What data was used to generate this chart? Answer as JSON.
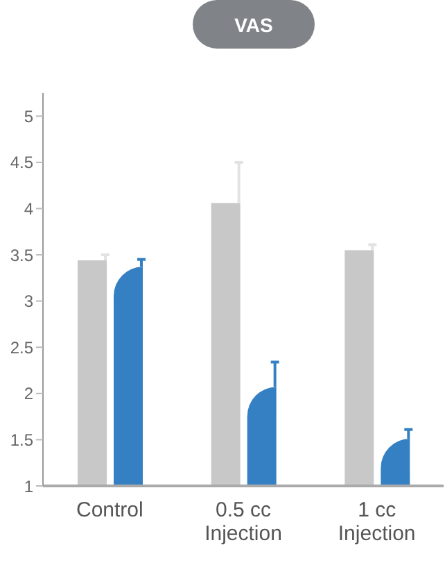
{
  "chart_data": {
    "type": "bar",
    "title": "VAS",
    "categories": [
      "Control",
      "0.5 cc Injection",
      "1 cc Injection"
    ],
    "series": [
      {
        "color": "#c8c8c8",
        "values": [
          3.44,
          4.06,
          3.55
        ],
        "errors": [
          [
            3.44,
            3.5
          ],
          [
            4.06,
            4.5
          ],
          [
            3.55,
            3.61
          ]
        ]
      },
      {
        "color": "#3580c3",
        "values": [
          3.37,
          2.07,
          1.51
        ],
        "errors": [
          [
            3.37,
            3.45
          ],
          [
            2.07,
            2.34
          ],
          [
            1.51,
            1.61
          ]
        ]
      }
    ],
    "ylim": [
      1,
      5.25
    ],
    "yticks": [
      1,
      1.5,
      2,
      2.5,
      3,
      3.5,
      4,
      4.5,
      5
    ],
    "grid": false,
    "legend": false
  }
}
